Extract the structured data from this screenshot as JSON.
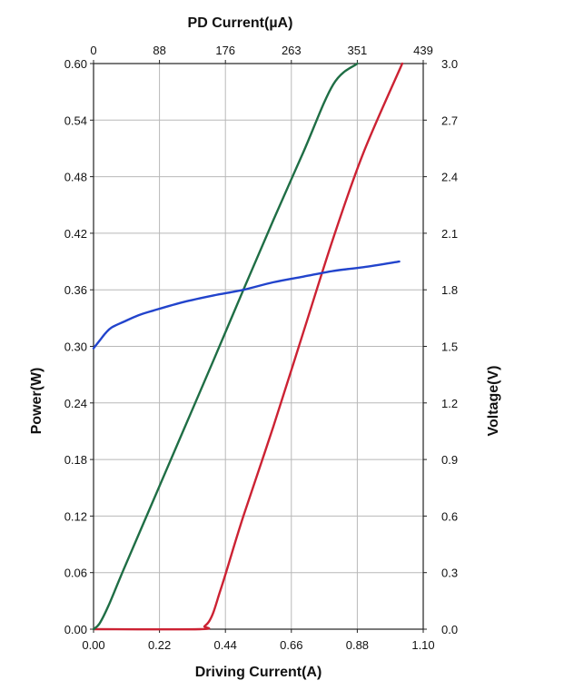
{
  "chart_data": {
    "type": "line",
    "title": "",
    "xlabel": "Driving Current(A)",
    "x_top_label": "PD Current(µA)",
    "ylabel_left": "Power(W)",
    "ylabel_right": "Voltage(V)",
    "xlim": [
      0.0,
      1.1
    ],
    "ylim_left": [
      0.0,
      0.6
    ],
    "ylim_right": [
      0.0,
      3.0
    ],
    "x_ticks": [
      "0.00",
      "0.22",
      "0.44",
      "0.66",
      "0.88",
      "1.10"
    ],
    "x_top_ticks": [
      "0",
      "88",
      "176",
      "263",
      "351",
      "439"
    ],
    "y_left_ticks": [
      "0.00",
      "0.06",
      "0.12",
      "0.18",
      "0.24",
      "0.30",
      "0.36",
      "0.42",
      "0.48",
      "0.54",
      "0.60"
    ],
    "y_right_ticks": [
      "0.0",
      "0.3",
      "0.6",
      "0.9",
      "1.2",
      "1.5",
      "1.8",
      "2.1",
      "2.4",
      "2.7",
      "3.0"
    ],
    "grid": true,
    "legend": "none",
    "series": [
      {
        "color": "#cc2233",
        "axis": "left",
        "x": [
          0.0,
          0.355,
          0.37,
          0.385,
          0.4,
          0.42,
          0.44,
          0.5,
          0.6,
          0.7,
          0.8,
          0.9,
          1.03
        ],
        "y": [
          0.0,
          0.0,
          0.003,
          0.008,
          0.018,
          0.038,
          0.058,
          0.12,
          0.215,
          0.315,
          0.415,
          0.505,
          0.6
        ]
      },
      {
        "color": "#1f6e45",
        "axis": "left",
        "x": [
          0.0,
          0.02,
          0.05,
          0.1,
          0.2,
          0.3,
          0.4,
          0.5,
          0.6,
          0.7,
          0.8,
          0.88
        ],
        "y": [
          0.0,
          0.006,
          0.025,
          0.063,
          0.137,
          0.211,
          0.285,
          0.36,
          0.434,
          0.506,
          0.578,
          0.6
        ]
      },
      {
        "color": "#2244cc",
        "axis": "right",
        "x": [
          0.0,
          0.02,
          0.04,
          0.06,
          0.1,
          0.15,
          0.2,
          0.3,
          0.4,
          0.5,
          0.6,
          0.7,
          0.8,
          0.9,
          1.02
        ],
        "y": [
          1.49,
          1.53,
          1.57,
          1.6,
          1.63,
          1.665,
          1.69,
          1.735,
          1.77,
          1.8,
          1.84,
          1.87,
          1.9,
          1.92,
          1.95
        ]
      }
    ]
  }
}
